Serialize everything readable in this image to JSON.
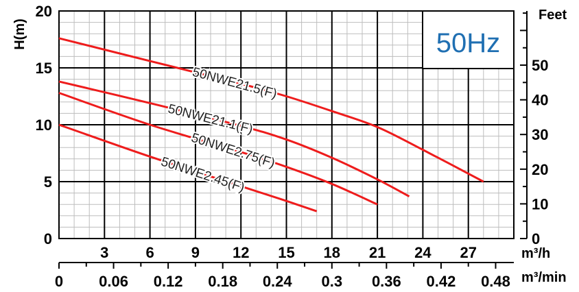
{
  "chart_data": {
    "type": "line",
    "frequency_label": "50Hz",
    "colors": {
      "series": "#ee1c1c",
      "frequency": "#1f6fb2",
      "grid_minor": "#bdbdbd",
      "grid_major": "#000000"
    },
    "ylabel": "H(m)",
    "ylabel_right": "Feet",
    "xlabel": "m³/h",
    "xlabel_secondary": "m³/min",
    "xlim": [
      0,
      30
    ],
    "ylim": [
      0,
      20
    ],
    "x_ticks": [
      "3",
      "6",
      "9",
      "12",
      "15",
      "18",
      "21",
      "24",
      "27"
    ],
    "x_ticks_values": [
      3,
      6,
      9,
      12,
      15,
      18,
      21,
      24,
      27
    ],
    "x2_ticks": [
      "0",
      "0.06",
      "0.12",
      "0.18",
      "0.24",
      "0.3",
      "0.36",
      "0.42",
      "0.48"
    ],
    "x2_ticks_values": [
      0,
      0.06,
      0.12,
      0.18,
      0.24,
      0.3,
      0.36,
      0.42,
      0.48
    ],
    "y_ticks": [
      "0",
      "5",
      "10",
      "15",
      "20"
    ],
    "y_ticks_values": [
      0,
      5,
      10,
      15,
      20
    ],
    "y_right_ticks": [
      "0",
      "10",
      "20",
      "30",
      "40",
      "50"
    ],
    "y_right_ticks_values": [
      0,
      10,
      20,
      30,
      40,
      50
    ],
    "grid": true,
    "series": [
      {
        "name": "50NWE21.5(F)",
        "x": [
          0,
          6,
          12,
          15,
          18,
          21,
          24,
          28
        ],
        "y": [
          17.6,
          15.6,
          13.6,
          12.5,
          11.2,
          9.8,
          7.8,
          5.0
        ]
      },
      {
        "name": "50NWE21.1(F)",
        "x": [
          0,
          6,
          12,
          15,
          18,
          21,
          23.1
        ],
        "y": [
          13.8,
          11.9,
          9.9,
          8.7,
          7.1,
          5.2,
          3.7
        ]
      },
      {
        "name": "50NWE2.75(F)",
        "x": [
          0,
          6,
          12,
          15,
          18,
          21
        ],
        "y": [
          12.8,
          10.0,
          7.6,
          6.3,
          4.8,
          3.0
        ]
      },
      {
        "name": "50NWE2.45(F)",
        "x": [
          0,
          6,
          12,
          15,
          17
        ],
        "y": [
          10.0,
          7.2,
          4.6,
          3.3,
          2.4
        ]
      }
    ]
  }
}
